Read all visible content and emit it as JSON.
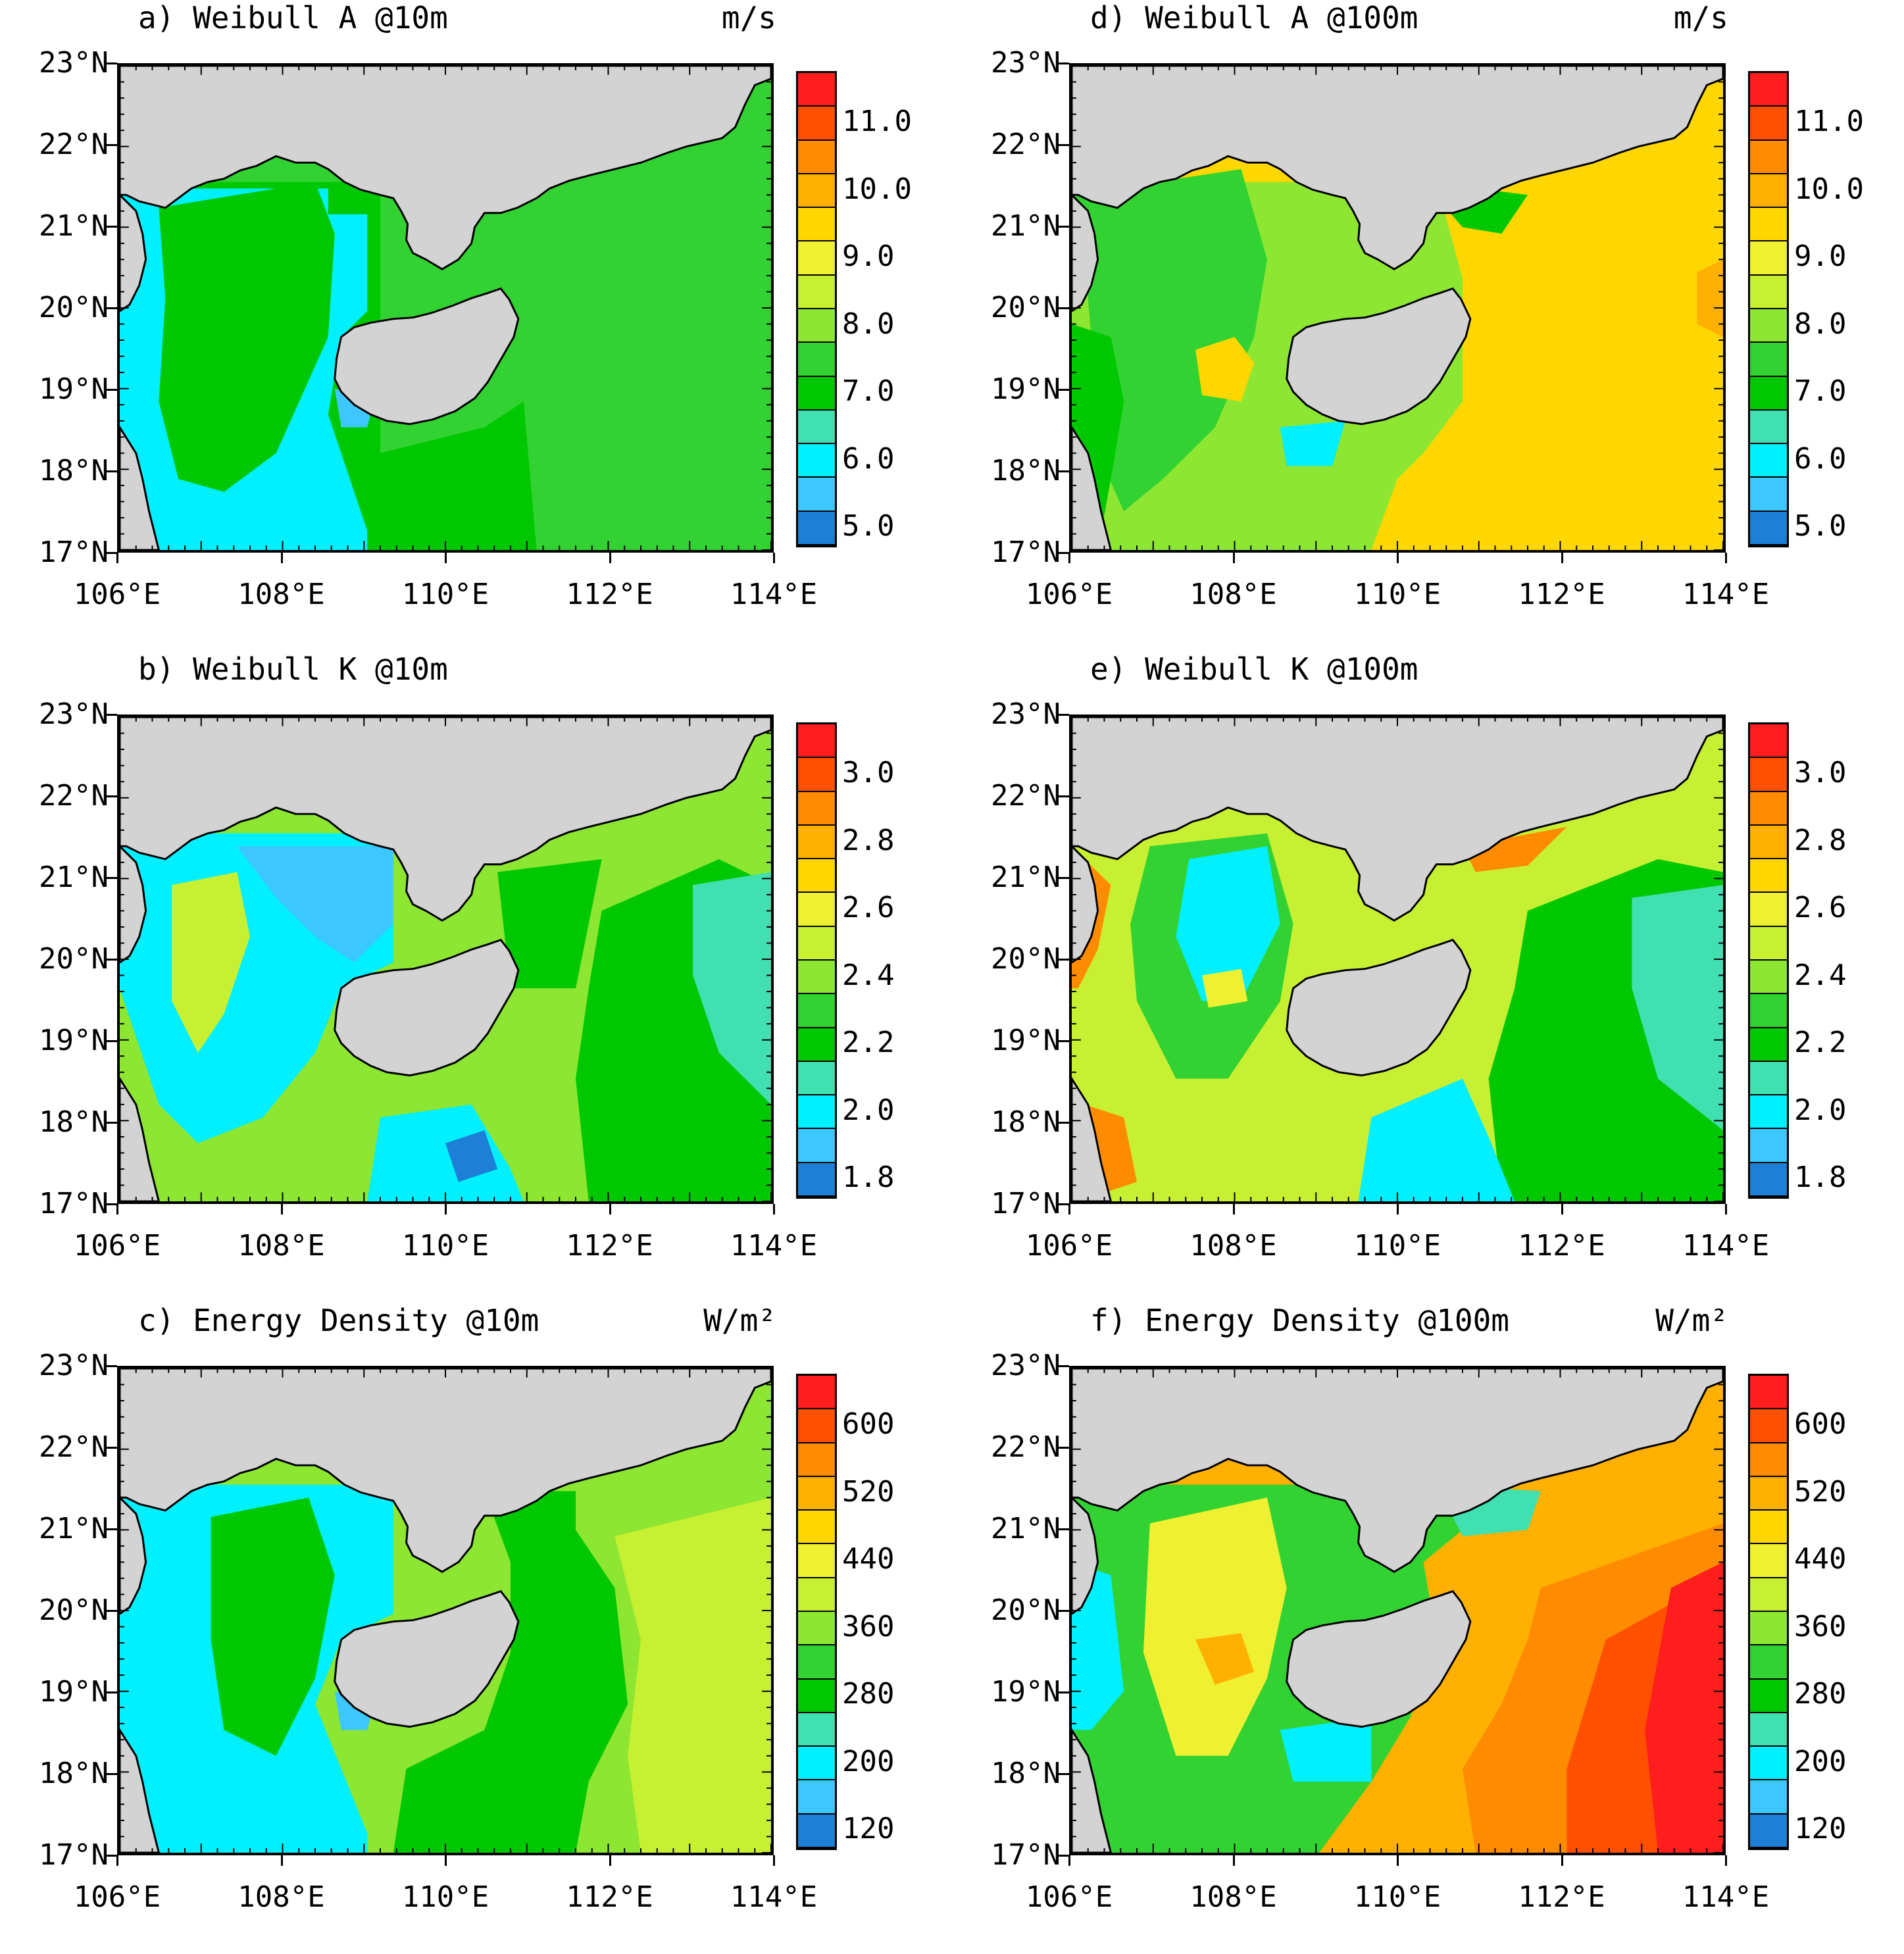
{
  "lat_labels": [
    "23°N",
    "22°N",
    "21°N",
    "20°N",
    "19°N",
    "18°N",
    "17°N"
  ],
  "lon_labels": [
    "106°E",
    "108°E",
    "110°E",
    "112°E",
    "114°E"
  ],
  "colors": [
    "#1e7fd6",
    "#3cc8ff",
    "#00f0ff",
    "#40e0b0",
    "#00c800",
    "#32d232",
    "#8ce632",
    "#c8f032",
    "#f0f032",
    "#ffd700",
    "#ffb000",
    "#ff8c00",
    "#ff5000",
    "#ff1e1e"
  ],
  "land_color": "#d3d3d3",
  "panels": [
    {
      "id": "a",
      "title": "a) Weibull A @10m",
      "unit": "m/s",
      "ticks": [
        "11.0",
        "10.0",
        "9.0",
        "8.0",
        "7.0",
        "6.0",
        "5.0"
      ],
      "pattern": "a10"
    },
    {
      "id": "d",
      "title": "d) Weibull A @100m",
      "unit": "m/s",
      "ticks": [
        "11.0",
        "10.0",
        "9.0",
        "8.0",
        "7.0",
        "6.0",
        "5.0"
      ],
      "pattern": "a100"
    },
    {
      "id": "b",
      "title": "b) Weibull K @10m",
      "unit": "",
      "ticks": [
        "3.0",
        "2.8",
        "2.6",
        "2.4",
        "2.2",
        "2.0",
        "1.8"
      ],
      "pattern": "k10"
    },
    {
      "id": "e",
      "title": "e) Weibull K @100m",
      "unit": "",
      "ticks": [
        "3.0",
        "2.8",
        "2.6",
        "2.4",
        "2.2",
        "2.0",
        "1.8"
      ],
      "pattern": "k100"
    },
    {
      "id": "c",
      "title": "c) Energy Density @10m",
      "unit": "W/m²",
      "ticks": [
        "600",
        "520",
        "440",
        "360",
        "280",
        "200",
        "120"
      ],
      "pattern": "e10"
    },
    {
      "id": "f",
      "title": "f) Energy Density @100m",
      "unit": "W/m²",
      "ticks": [
        "600",
        "520",
        "440",
        "360",
        "280",
        "200",
        "120"
      ],
      "pattern": "e100"
    }
  ]
}
